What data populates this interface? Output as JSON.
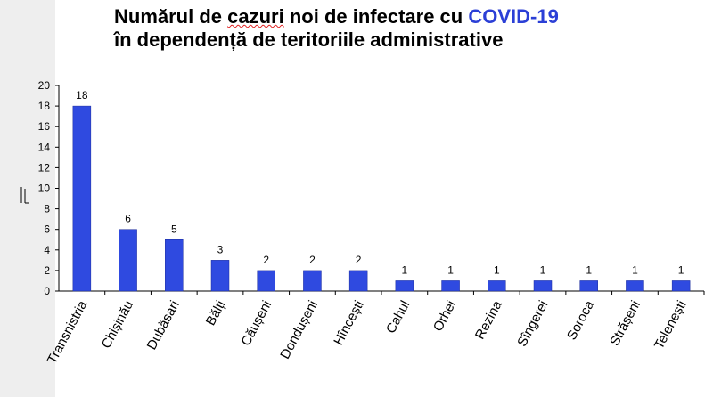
{
  "title": {
    "line1_part1": "Numărul de ",
    "line1_underlined": "cazuri",
    "line1_part2": " noi de infectare cu ",
    "line1_accent": "COVID-19",
    "line2": "în dependență de teritoriile administrative"
  },
  "chart_data": {
    "type": "bar",
    "title": "Numărul de cazuri noi de infectare cu COVID-19 în dependență de teritoriile administrative",
    "categories": [
      "Transnistria",
      "Chișinău",
      "Dubăsari",
      "Bălți",
      "Căușeni",
      "Dondușeni",
      "Hîncești",
      "Cahul",
      "Orhei",
      "Rezina",
      "Sîngerei",
      "Soroca",
      "Strășeni",
      "Telenești"
    ],
    "values": [
      18,
      6,
      5,
      3,
      2,
      2,
      2,
      1,
      1,
      1,
      1,
      1,
      1,
      1
    ],
    "ylim": [
      0,
      20
    ],
    "yticks": [
      0,
      2,
      4,
      6,
      8,
      10,
      12,
      14,
      16,
      18,
      20
    ],
    "xlabel": "",
    "ylabel": "",
    "bar_color": "#2f4ae0",
    "grid": false
  }
}
